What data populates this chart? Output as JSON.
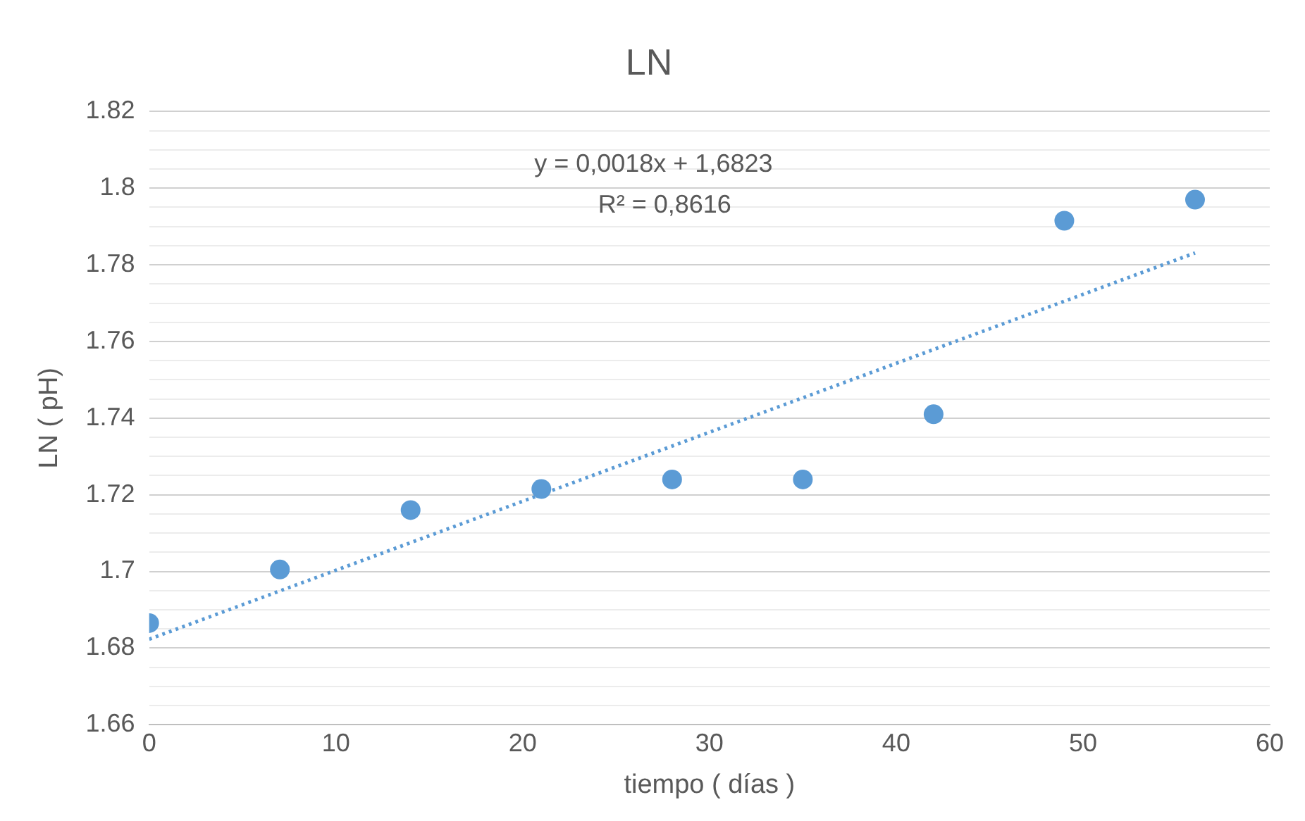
{
  "chart_data": {
    "type": "scatter",
    "title": "LN",
    "xlabel": "tiempo ( días )",
    "ylabel": "LN ( pH)",
    "xlim": [
      0,
      60
    ],
    "xticks": [
      0,
      10,
      20,
      30,
      40,
      50,
      60
    ],
    "ylim": [
      1.66,
      1.82
    ],
    "yticks": [
      1.66,
      {
        "value": 1.665,
        "label": null
      },
      {
        "value": 1.67,
        "label": null
      },
      {
        "value": 1.675,
        "label": null
      },
      1.68,
      {
        "value": 1.685,
        "label": null
      },
      {
        "value": 1.69,
        "label": null
      },
      {
        "value": 1.695,
        "label": null
      },
      1.7,
      {
        "value": 1.705,
        "label": null
      },
      {
        "value": 1.71,
        "label": null
      },
      {
        "value": 1.715,
        "label": null
      },
      1.72,
      {
        "value": 1.725,
        "label": null
      },
      {
        "value": 1.73,
        "label": null
      },
      {
        "value": 1.735,
        "label": null
      },
      1.74,
      {
        "value": 1.745,
        "label": null
      },
      {
        "value": 1.75,
        "label": null
      },
      {
        "value": 1.755,
        "label": null
      },
      1.76,
      {
        "value": 1.765,
        "label": null
      },
      {
        "value": 1.77,
        "label": null
      },
      {
        "value": 1.775,
        "label": null
      },
      1.78,
      {
        "value": 1.785,
        "label": null
      },
      {
        "value": 1.79,
        "label": null
      },
      {
        "value": 1.795,
        "label": null
      },
      1.8,
      {
        "value": 1.805,
        "label": null
      },
      {
        "value": 1.81,
        "label": null
      },
      {
        "value": 1.815,
        "label": null
      },
      1.82
    ],
    "grid": "y",
    "legend": false,
    "annotations": [
      "y = 0,0018x + 1,6823",
      "R² = 0,8616"
    ],
    "series": [
      {
        "color": "#5b9bd5",
        "marker": "circle",
        "x": [
          0,
          7,
          14,
          21,
          28,
          35,
          42,
          49,
          56
        ],
        "values": [
          1.6865,
          1.7005,
          1.716,
          1.7215,
          1.724,
          1.724,
          1.741,
          1.7915,
          1.797
        ]
      },
      {
        "type": "line",
        "color": "#5b9bd5",
        "marker": "none",
        "line_style": "dotted",
        "x": [
          0,
          56
        ],
        "values": [
          1.6823,
          1.7831
        ]
      }
    ]
  }
}
